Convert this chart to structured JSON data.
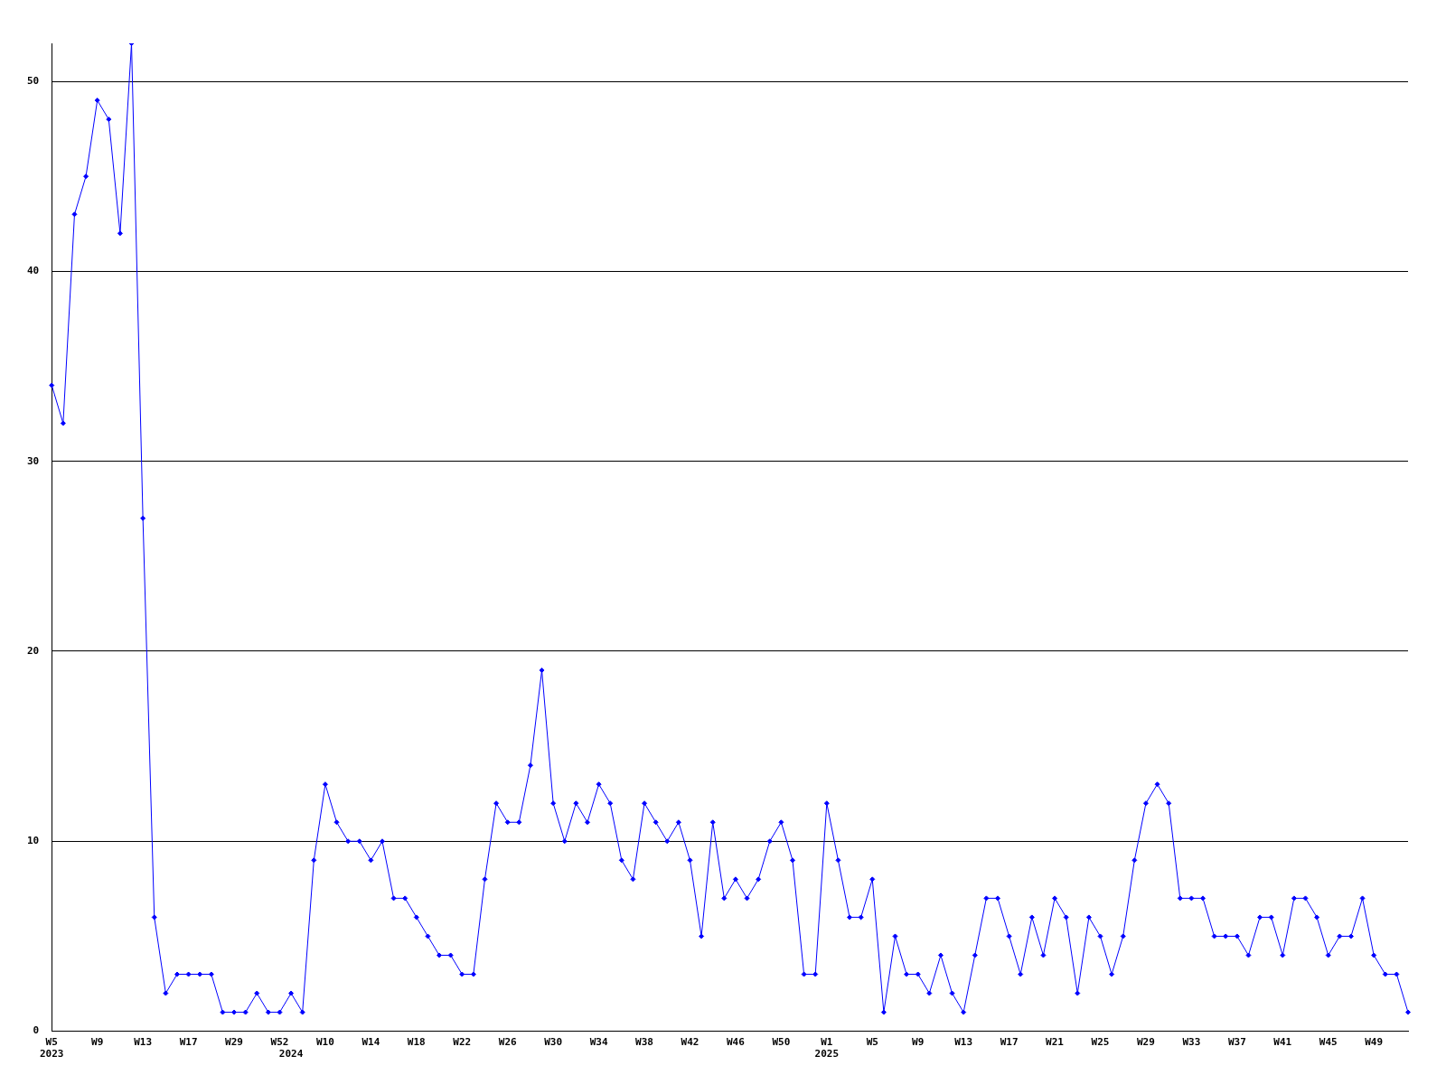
{
  "chart_data": {
    "type": "line",
    "categories": [
      "W5\n2023",
      null,
      null,
      null,
      "W9",
      null,
      null,
      null,
      "W13",
      null,
      null,
      null,
      "W17",
      null,
      null,
      null,
      "W29",
      null,
      null,
      null,
      "W52",
      "\n2024",
      null,
      null,
      "W10",
      null,
      null,
      null,
      "W14",
      null,
      null,
      null,
      "W18",
      null,
      null,
      null,
      "W22",
      null,
      null,
      null,
      "W26",
      null,
      null,
      null,
      "W30",
      null,
      null,
      null,
      "W34",
      null,
      null,
      null,
      "W38",
      null,
      null,
      null,
      "W42",
      null,
      null,
      null,
      "W46",
      null,
      null,
      null,
      "W50",
      null,
      null,
      null,
      "W1\n2025",
      null,
      null,
      null,
      "W5",
      null,
      null,
      null,
      "W9",
      null,
      null,
      null,
      "W13",
      null,
      null,
      null,
      "W17",
      null,
      null,
      null,
      "W21",
      null,
      null,
      null,
      "W25",
      null,
      null,
      null,
      "W29",
      null,
      null,
      null,
      "W33",
      null,
      null,
      null,
      "W37",
      null,
      null,
      null,
      "W41",
      null,
      null,
      null,
      "W45",
      null,
      null,
      null,
      "W49",
      null,
      null,
      null
    ],
    "series": [
      {
        "color": "#0000ff",
        "values": [
          34,
          32,
          43,
          45,
          49,
          48,
          42,
          52,
          27,
          6,
          2,
          3,
          3,
          3,
          3,
          1,
          1,
          1,
          2,
          1,
          1,
          2,
          1,
          9,
          13,
          11,
          10,
          10,
          9,
          10,
          7,
          7,
          6,
          5,
          4,
          4,
          3,
          3,
          8,
          12,
          11,
          11,
          14,
          19,
          12,
          10,
          12,
          11,
          13,
          12,
          9,
          8,
          12,
          11,
          10,
          11,
          9,
          5,
          11,
          7,
          8,
          7,
          8,
          10,
          11,
          9,
          3,
          3,
          12,
          9,
          6,
          6,
          8,
          1,
          5,
          3,
          3,
          2,
          4,
          2,
          1,
          4,
          7,
          7,
          5,
          3,
          6,
          4,
          7,
          6,
          2,
          6,
          5,
          3,
          5,
          9,
          12,
          13,
          12,
          7,
          7,
          7,
          5,
          5,
          5,
          4,
          6,
          6,
          4,
          7,
          7,
          6,
          4,
          5,
          5,
          7,
          4,
          3,
          3,
          1
        ]
      }
    ],
    "ylim": [
      0,
      52
    ],
    "yticks": [
      0,
      10,
      20,
      30,
      40,
      50
    ],
    "grid": "y",
    "legend": false,
    "marker": "diamond",
    "line_style": "solid"
  }
}
